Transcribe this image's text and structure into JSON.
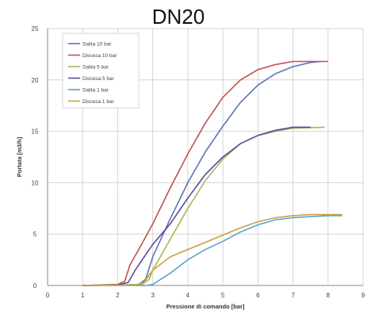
{
  "chart_data": {
    "type": "line",
    "title": "DN20",
    "xlabel": "Pressione di comando  [bar]",
    "ylabel": "Portata  [m3/h]",
    "xlim": [
      0,
      9
    ],
    "ylim": [
      0,
      25
    ],
    "x_ticks": [
      0,
      1,
      2,
      3,
      4,
      5,
      6,
      7,
      8,
      9
    ],
    "y_ticks": [
      0,
      5,
      10,
      15,
      20,
      25
    ],
    "grid": true,
    "legend_position": "top-left",
    "series": [
      {
        "name": "Salita 10 bar",
        "color": "#5b74b9",
        "points": [
          [
            1.0,
            0
          ],
          [
            2.0,
            0.05
          ],
          [
            2.6,
            0.1
          ],
          [
            2.8,
            0.6
          ],
          [
            3.0,
            2.8
          ],
          [
            3.5,
            6.5
          ],
          [
            4.0,
            10.0
          ],
          [
            4.5,
            13.0
          ],
          [
            5.0,
            15.5
          ],
          [
            5.5,
            17.8
          ],
          [
            6.0,
            19.5
          ],
          [
            6.5,
            20.6
          ],
          [
            7.0,
            21.3
          ],
          [
            7.5,
            21.7
          ],
          [
            7.8,
            21.8
          ]
        ]
      },
      {
        "name": "Discesa 10 bar",
        "color": "#c0504d",
        "points": [
          [
            1.0,
            0
          ],
          [
            2.0,
            0.1
          ],
          [
            2.2,
            0.4
          ],
          [
            2.35,
            2.0
          ],
          [
            2.6,
            3.5
          ],
          [
            3.0,
            6.0
          ],
          [
            3.5,
            9.5
          ],
          [
            4.0,
            12.8
          ],
          [
            4.5,
            15.8
          ],
          [
            5.0,
            18.3
          ],
          [
            5.5,
            20.0
          ],
          [
            6.0,
            21.0
          ],
          [
            6.5,
            21.5
          ],
          [
            7.0,
            21.8
          ],
          [
            8.0,
            21.8
          ]
        ]
      },
      {
        "name": "Salita 5 bar",
        "color": "#a8b85a",
        "points": [
          [
            1.0,
            0
          ],
          [
            2.0,
            0.05
          ],
          [
            2.7,
            0.1
          ],
          [
            2.9,
            0.6
          ],
          [
            3.0,
            1.5
          ],
          [
            3.5,
            4.5
          ],
          [
            4.0,
            7.5
          ],
          [
            4.5,
            10.2
          ],
          [
            5.0,
            12.3
          ],
          [
            5.5,
            13.8
          ],
          [
            6.0,
            14.6
          ],
          [
            6.5,
            15.0
          ],
          [
            7.0,
            15.3
          ],
          [
            7.9,
            15.4
          ]
        ]
      },
      {
        "name": "Discesa 5 bar",
        "color": "#5a4a9e",
        "points": [
          [
            1.0,
            0
          ],
          [
            2.0,
            0.05
          ],
          [
            2.3,
            0.3
          ],
          [
            2.5,
            1.5
          ],
          [
            2.8,
            3.0
          ],
          [
            3.0,
            4.0
          ],
          [
            3.5,
            6.0
          ],
          [
            4.0,
            8.5
          ],
          [
            4.5,
            10.8
          ],
          [
            5.0,
            12.5
          ],
          [
            5.5,
            13.8
          ],
          [
            6.0,
            14.6
          ],
          [
            6.5,
            15.1
          ],
          [
            7.0,
            15.4
          ],
          [
            7.5,
            15.4
          ]
        ]
      },
      {
        "name": "Salita 1 bar",
        "color": "#5aa2d1",
        "points": [
          [
            1.0,
            0
          ],
          [
            2.8,
            0
          ],
          [
            3.0,
            0.1
          ],
          [
            3.5,
            1.2
          ],
          [
            4.0,
            2.5
          ],
          [
            4.5,
            3.5
          ],
          [
            5.0,
            4.3
          ],
          [
            5.5,
            5.2
          ],
          [
            6.0,
            5.9
          ],
          [
            6.5,
            6.4
          ],
          [
            7.0,
            6.6
          ],
          [
            7.5,
            6.7
          ],
          [
            8.0,
            6.8
          ],
          [
            8.4,
            6.8
          ]
        ]
      },
      {
        "name": "Discesa 1 bar",
        "color": "#c9a23a",
        "points": [
          [
            1.0,
            0
          ],
          [
            2.5,
            0.05
          ],
          [
            2.75,
            0.3
          ],
          [
            3.0,
            1.5
          ],
          [
            3.5,
            2.8
          ],
          [
            4.0,
            3.5
          ],
          [
            4.5,
            4.2
          ],
          [
            5.0,
            4.9
          ],
          [
            5.5,
            5.6
          ],
          [
            6.0,
            6.2
          ],
          [
            6.5,
            6.6
          ],
          [
            7.0,
            6.8
          ],
          [
            7.5,
            6.9
          ],
          [
            8.0,
            6.9
          ],
          [
            8.4,
            6.9
          ]
        ]
      }
    ]
  }
}
